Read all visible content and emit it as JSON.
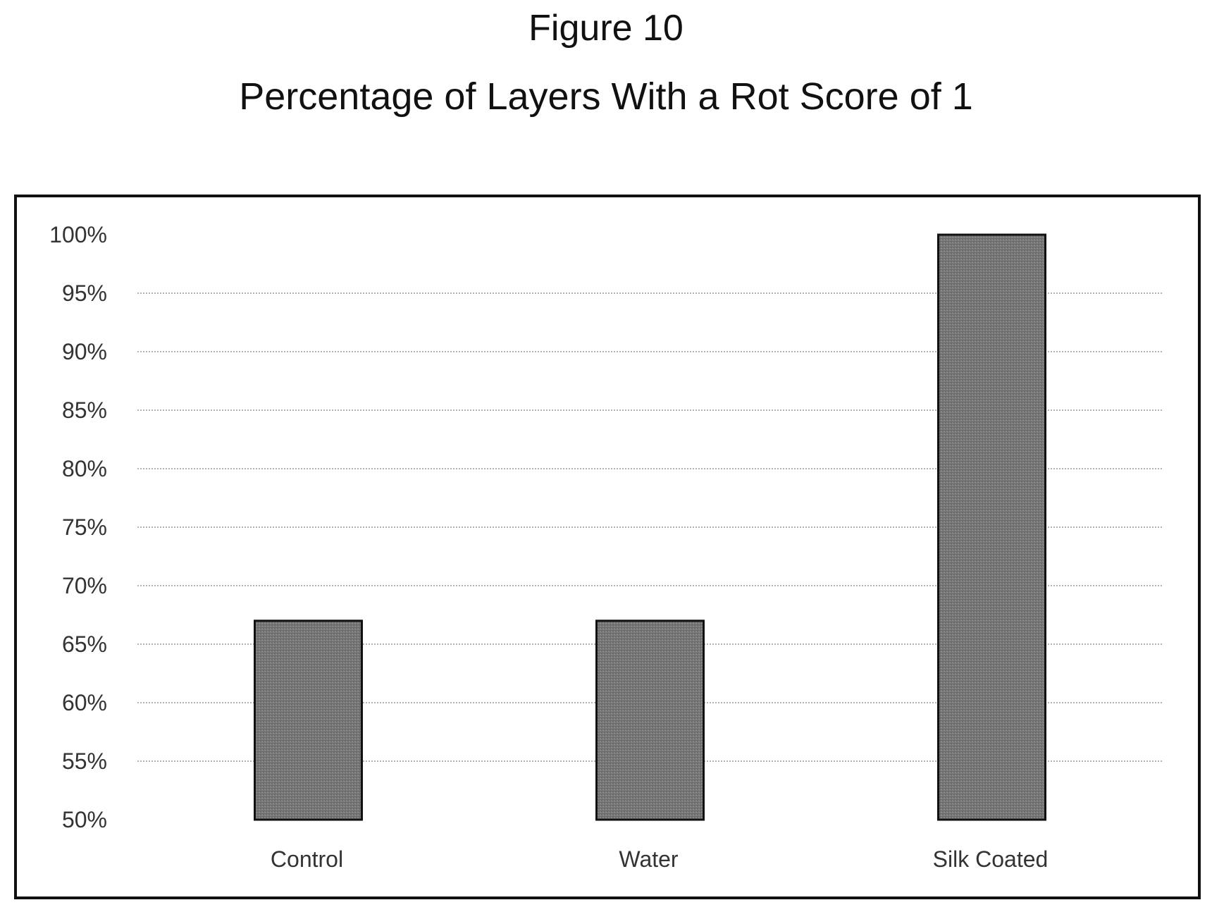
{
  "figure_label": "Figure 10",
  "chart_data": {
    "type": "bar",
    "title": "Percentage of Layers With a Rot Score of 1",
    "xlabel": "",
    "ylabel": "",
    "categories": [
      "Control",
      "Water",
      "Silk Coated"
    ],
    "values": [
      67,
      67,
      100
    ],
    "ylim": [
      50,
      100
    ],
    "yticks": [
      50,
      55,
      60,
      65,
      70,
      75,
      80,
      85,
      90,
      95,
      100
    ],
    "ytick_labels": [
      "50%",
      "55%",
      "60%",
      "65%",
      "70%",
      "75%",
      "80%",
      "85%",
      "90%",
      "95%",
      "100%"
    ],
    "grid": true,
    "legend": "none",
    "colors": {
      "bar_fill": "#7a7a7a",
      "bar_stroke": "#111111",
      "grid": "#9a9a9a",
      "frame": "#111111"
    }
  }
}
